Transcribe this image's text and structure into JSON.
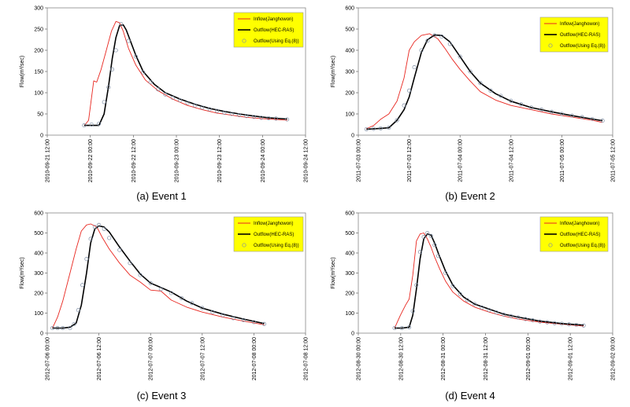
{
  "chart_data": [
    {
      "type": "line",
      "caption": "(a) Event 1",
      "ylabel": "Flow(m³/sec)",
      "ylim": [
        0,
        300
      ],
      "yticks": [
        "0",
        "50",
        "100",
        "150",
        "200",
        "250",
        "300"
      ],
      "xlim": [
        0,
        3.5
      ],
      "xticks": [
        "2010-09-21 12:00",
        "2010-09-22 00:00",
        "2010-09-22 12:00",
        "2010-09-23 00:00",
        "2010-09-23 12:00",
        "2010-09-24 00:00",
        "2010-09-24 12:00"
      ],
      "legend_position": "top-right",
      "colors": {
        "inflow": "#e8261f",
        "outflow": "#000000",
        "computed": "#7f8fa6",
        "legend_bg": "#ffff00"
      },
      "series": [
        {
          "name": "Inflow(Janghowon)",
          "style": "red-line",
          "x": [
            0.5,
            0.56,
            0.63,
            0.67,
            0.73,
            0.8,
            0.87,
            0.93,
            0.98,
            1.03,
            1.1,
            1.2,
            1.33,
            1.5,
            1.7,
            1.9,
            2.1,
            2.3,
            2.5,
            2.7,
            2.9,
            3.1,
            3.25
          ],
          "y": [
            22,
            35,
            128,
            125,
            155,
            200,
            245,
            268,
            265,
            245,
            205,
            165,
            130,
            105,
            85,
            70,
            60,
            52,
            47,
            42,
            39,
            37,
            35
          ]
        },
        {
          "name": "Outflow(HEC-RAS)",
          "style": "black-line",
          "x": [
            0.5,
            0.6,
            0.7,
            0.77,
            0.83,
            0.88,
            0.93,
            0.98,
            1.03,
            1.07,
            1.12,
            1.2,
            1.3,
            1.45,
            1.6,
            1.8,
            2.0,
            2.2,
            2.4,
            2.6,
            2.8,
            3.0,
            3.25
          ],
          "y": [
            23,
            23,
            23,
            50,
            115,
            180,
            230,
            258,
            260,
            248,
            225,
            188,
            150,
            120,
            100,
            85,
            73,
            63,
            56,
            50,
            45,
            41,
            38
          ]
        },
        {
          "name": "Outflow(Using Eq.(8))",
          "style": "circles",
          "x": [
            0.5,
            0.6,
            0.7,
            0.77,
            0.83,
            0.88,
            0.93,
            1.0,
            1.1,
            1.2,
            1.3,
            1.4,
            1.5,
            1.6,
            1.7,
            1.8,
            1.9,
            2.0,
            2.1,
            2.2,
            2.3,
            2.4,
            2.5,
            2.6,
            2.7,
            2.8,
            2.9,
            3.0,
            3.1,
            3.25
          ],
          "y": [
            23,
            25,
            27,
            78,
            113,
            155,
            200,
            262,
            222,
            185,
            148,
            125,
            108,
            96,
            88,
            82,
            76,
            70,
            65,
            61,
            57,
            53,
            50,
            47,
            45,
            43,
            41,
            40,
            39,
            37
          ]
        }
      ]
    },
    {
      "type": "line",
      "caption": "(b) Event 2",
      "ylabel": "Flow(m³/sec)",
      "ylim": [
        0,
        600
      ],
      "yticks": [
        "0",
        "100",
        "200",
        "300",
        "400",
        "500",
        "600"
      ],
      "xlim": [
        0,
        2.5
      ],
      "xticks": [
        "2011-07-03 00:00",
        "2011-07-03 12:00",
        "2011-07-04 00:00",
        "2011-07-04 12:00",
        "2011-07-05 00:00",
        "2011-07-05 12:00"
      ],
      "legend_position": "top-right",
      "colors": {
        "inflow": "#e8261f",
        "outflow": "#000000",
        "computed": "#7f8fa6",
        "legend_bg": "#ffff00"
      },
      "series": [
        {
          "name": "Inflow(Janghowon)",
          "style": "red-line",
          "x": [
            0.08,
            0.15,
            0.22,
            0.3,
            0.38,
            0.45,
            0.5,
            0.55,
            0.62,
            0.7,
            0.78,
            0.85,
            0.92,
            1.0,
            1.1,
            1.2,
            1.35,
            1.5,
            1.7,
            1.9,
            2.1,
            2.3,
            2.4
          ],
          "y": [
            30,
            45,
            75,
            100,
            160,
            270,
            400,
            440,
            470,
            478,
            455,
            410,
            360,
            310,
            255,
            205,
            165,
            140,
            120,
            100,
            85,
            70,
            60
          ]
        },
        {
          "name": "Outflow(HEC-RAS)",
          "style": "black-line",
          "x": [
            0.08,
            0.15,
            0.22,
            0.3,
            0.38,
            0.45,
            0.5,
            0.55,
            0.62,
            0.68,
            0.75,
            0.82,
            0.9,
            1.0,
            1.1,
            1.2,
            1.35,
            1.5,
            1.7,
            1.9,
            2.1,
            2.3,
            2.4
          ],
          "y": [
            28,
            30,
            32,
            35,
            70,
            120,
            180,
            270,
            390,
            450,
            472,
            470,
            440,
            370,
            300,
            245,
            195,
            160,
            130,
            110,
            92,
            76,
            68
          ]
        },
        {
          "name": "Outflow(Using Eq.(8))",
          "style": "circles",
          "x": [
            0.08,
            0.15,
            0.22,
            0.3,
            0.38,
            0.45,
            0.5,
            0.55,
            0.62,
            0.68,
            0.75,
            0.82,
            0.9,
            1.0,
            1.1,
            1.2,
            1.3,
            1.4,
            1.5,
            1.6,
            1.7,
            1.8,
            1.9,
            2.0,
            2.1,
            2.2,
            2.3,
            2.4
          ],
          "y": [
            28,
            30,
            32,
            35,
            70,
            140,
            210,
            320,
            400,
            445,
            470,
            465,
            430,
            370,
            300,
            245,
            210,
            185,
            162,
            145,
            130,
            120,
            110,
            100,
            92,
            85,
            76,
            68
          ]
        }
      ]
    },
    {
      "type": "line",
      "caption": "(c) Event 3",
      "ylabel": "Flow(m³/sec)",
      "ylim": [
        0,
        600
      ],
      "yticks": [
        "0",
        "100",
        "200",
        "300",
        "400",
        "500",
        "600"
      ],
      "xlim": [
        0,
        2.5
      ],
      "xticks": [
        "2012-07-06 00:00",
        "2012-07-06 12:00",
        "2012-07-07 00:00",
        "2012-07-07 12:00",
        "2012-07-08 00:00",
        "2012-07-08 12:00"
      ],
      "legend_position": "top-right",
      "colors": {
        "inflow": "#e8261f",
        "outflow": "#000000",
        "computed": "#7f8fa6",
        "legend_bg": "#ffff00"
      },
      "series": [
        {
          "name": "Inflow(Janghowon)",
          "style": "red-line",
          "x": [
            0.05,
            0.1,
            0.15,
            0.22,
            0.28,
            0.33,
            0.38,
            0.42,
            0.48,
            0.53,
            0.6,
            0.7,
            0.8,
            0.9,
            1.0,
            1.1,
            1.2,
            1.35,
            1.5,
            1.7,
            1.9,
            2.1
          ],
          "y": [
            25,
            80,
            160,
            300,
            420,
            510,
            540,
            545,
            530,
            480,
            420,
            350,
            290,
            255,
            215,
            210,
            165,
            130,
            105,
            80,
            60,
            42
          ]
        },
        {
          "name": "Outflow(HEC-RAS)",
          "style": "black-line",
          "x": [
            0.05,
            0.15,
            0.22,
            0.28,
            0.33,
            0.38,
            0.42,
            0.46,
            0.5,
            0.55,
            0.6,
            0.7,
            0.8,
            0.9,
            1.0,
            1.1,
            1.2,
            1.35,
            1.5,
            1.7,
            1.9,
            2.1
          ],
          "y": [
            25,
            25,
            30,
            50,
            140,
            300,
            450,
            520,
            535,
            530,
            505,
            430,
            360,
            295,
            250,
            228,
            205,
            160,
            125,
            95,
            70,
            48
          ]
        },
        {
          "name": "Outflow(Using Eq.(8))",
          "style": "circles",
          "x": [
            0.05,
            0.1,
            0.15,
            0.22,
            0.26,
            0.3,
            0.34,
            0.38,
            0.42,
            0.46,
            0.5,
            0.55,
            0.6,
            0.7,
            0.8,
            0.9,
            1.0,
            1.1,
            1.2,
            1.3,
            1.4,
            1.5,
            1.6,
            1.7,
            1.8,
            1.9,
            2.0,
            2.1
          ],
          "y": [
            25,
            25,
            25,
            25,
            45,
            115,
            240,
            370,
            470,
            530,
            540,
            520,
            475,
            415,
            350,
            290,
            250,
            220,
            200,
            175,
            150,
            125,
            105,
            90,
            75,
            65,
            55,
            46
          ]
        }
      ]
    },
    {
      "type": "line",
      "caption": "(d) Event 4",
      "ylabel": "Flow(m³/sec)",
      "ylim": [
        0,
        600
      ],
      "yticks": [
        "0",
        "100",
        "200",
        "300",
        "400",
        "500",
        "600"
      ],
      "xlim": [
        0,
        3.5
      ],
      "xticks": [
        "2012-08-30 00:00",
        "2012-08-30 12:00",
        "2012-08-31 00:00",
        "2012-08-31 12:00",
        "2012-09-01 00:00",
        "2012-09-01 12:00",
        "2012-09-02 00:00"
      ],
      "legend_position": "top-right",
      "colors": {
        "inflow": "#e8261f",
        "outflow": "#000000",
        "computed": "#7f8fa6",
        "legend_bg": "#ffff00"
      },
      "series": [
        {
          "name": "Inflow(Janghowon)",
          "style": "red-line",
          "x": [
            0.5,
            0.58,
            0.65,
            0.7,
            0.75,
            0.8,
            0.85,
            0.9,
            0.95,
            1.0,
            1.05,
            1.12,
            1.2,
            1.3,
            1.45,
            1.6,
            1.8,
            2.0,
            2.2,
            2.5,
            2.8,
            3.1
          ],
          "y": [
            25,
            90,
            140,
            170,
            290,
            460,
            495,
            500,
            470,
            430,
            380,
            320,
            260,
            205,
            160,
            130,
            105,
            85,
            70,
            55,
            45,
            35
          ]
        },
        {
          "name": "Outflow(HEC-RAS)",
          "style": "black-line",
          "x": [
            0.5,
            0.6,
            0.7,
            0.75,
            0.8,
            0.85,
            0.9,
            0.95,
            1.0,
            1.05,
            1.1,
            1.2,
            1.3,
            1.45,
            1.6,
            1.8,
            2.0,
            2.2,
            2.5,
            2.8,
            3.1
          ],
          "y": [
            25,
            25,
            30,
            90,
            220,
            370,
            470,
            495,
            490,
            450,
            400,
            310,
            240,
            180,
            145,
            120,
            95,
            80,
            60,
            48,
            40
          ]
        },
        {
          "name": "Outflow(Using Eq.(8))",
          "style": "circles",
          "x": [
            0.5,
            0.6,
            0.7,
            0.75,
            0.8,
            0.85,
            0.9,
            0.95,
            1.0,
            1.05,
            1.1,
            1.2,
            1.3,
            1.4,
            1.5,
            1.6,
            1.7,
            1.8,
            1.9,
            2.0,
            2.1,
            2.2,
            2.3,
            2.4,
            2.5,
            2.6,
            2.7,
            2.8,
            2.9,
            3.0,
            3.1
          ],
          "y": [
            25,
            25,
            30,
            110,
            240,
            405,
            480,
            500,
            485,
            440,
            385,
            300,
            235,
            195,
            165,
            145,
            128,
            115,
            103,
            93,
            85,
            78,
            70,
            64,
            58,
            54,
            50,
            47,
            44,
            41,
            38
          ]
        }
      ]
    }
  ]
}
